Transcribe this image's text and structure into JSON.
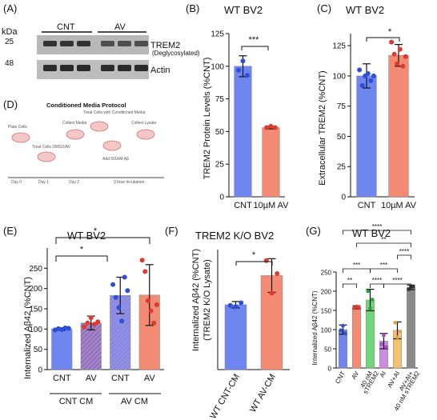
{
  "panels": {
    "A": {
      "letter": "(A)",
      "kda_label": "kDa",
      "mw_top": "25",
      "mw_bottom": "48",
      "group_left": "CNT",
      "group_right": "AV",
      "band_top_label": "TREM2",
      "band_top_sub": "(Deglycosylated)",
      "band_bottom_label": "Actin"
    },
    "B": {
      "letter": "(B)",
      "title": "WT BV2",
      "ylabel": "TREM2 Protein Levels (%CNT)",
      "sig": "***"
    },
    "C": {
      "letter": "(C)",
      "title": "WT BV2",
      "ylabel": "Extracellular TREM2 (%CNT)",
      "sig": "*"
    },
    "D": {
      "letter": "(D)",
      "title": "Conditioned Media Protocol",
      "steps": [
        "Plate Cells",
        "Treat Cells DMSO/AV",
        "Collect Media",
        "Treat Cells with Conditioned Media",
        "Add 500nM Aβ",
        "Collect Lysate"
      ],
      "days": [
        "Day 0",
        "Day 1",
        "Day 2",
        "3 hour incubation"
      ]
    },
    "E": {
      "letter": "(E)",
      "title": "WT BV2",
      "ylabel": "Internalized Aβ42 (%CNT)",
      "group_left": "CNT CM",
      "group_right": "AV CM",
      "sig": [
        "*",
        "*"
      ]
    },
    "F": {
      "letter": "(F)",
      "title": "TREM2 K/O BV2",
      "ylabel_line1": "Internalized Aβ42 (%CNT)",
      "ylabel_line2": "(TREM2 K/O Lysate)",
      "sig": "*"
    },
    "G": {
      "letter": "(G)",
      "title": "WT BV2",
      "ylabel": "Internalized Aβ42 (%CNT)",
      "sig": [
        "****",
        "**",
        "****",
        "***",
        "***",
        "**",
        "****",
        "****"
      ]
    }
  },
  "chart_data": [
    {
      "panel": "B",
      "type": "bar",
      "categories": [
        "CNT",
        "10µM AV"
      ],
      "values": [
        100,
        53
      ],
      "errors": [
        8,
        1
      ],
      "points": [
        [
          97,
          104,
          93
        ],
        [
          53,
          54,
          53
        ]
      ],
      "colors": [
        "#6f86f0",
        "#f38b74"
      ],
      "yticks": [
        0,
        25,
        50,
        75,
        100,
        125
      ],
      "ylim": [
        0,
        125
      ]
    },
    {
      "panel": "C",
      "type": "bar",
      "categories": [
        "CNT",
        "10µM AV"
      ],
      "values": [
        100,
        117
      ],
      "errors": [
        10,
        9
      ],
      "points": [
        [
          105,
          92,
          100,
          102,
          96,
          100
        ],
        [
          128,
          118,
          110,
          122,
          108,
          116
        ]
      ],
      "colors": [
        "#6f86f0",
        "#f38b74"
      ],
      "yticks": [
        0,
        25,
        50,
        75,
        100,
        125
      ],
      "ylim": [
        0,
        135
      ]
    },
    {
      "panel": "E",
      "type": "bar",
      "categories": [
        "CNT",
        "AV",
        "CNT",
        "AV"
      ],
      "values": [
        100,
        115,
        183,
        184
      ],
      "errors": [
        3,
        17,
        45,
        75
      ],
      "points": [
        [
          98,
          101,
          99,
          103,
          102
        ],
        [
          105,
          115,
          128,
          112,
          118
        ],
        [
          210,
          178,
          153,
          120,
          228,
          195
        ],
        [
          270,
          242,
          170,
          145,
          115,
          160
        ]
      ],
      "colors": [
        "#6f86f0",
        "#9d7dc6",
        "#6f86f0",
        "#f38b74"
      ],
      "yticks": [
        0,
        50,
        100,
        150,
        200,
        250
      ],
      "ylim": [
        0,
        300
      ]
    },
    {
      "panel": "F",
      "type": "bar",
      "categories": [
        "WT CNT-CM",
        "WT AV-CM"
      ],
      "values": [
        100,
        145
      ],
      "errors": [
        5,
        26
      ],
      "points": [
        [
          99,
          97,
          103
        ],
        [
          168,
          118,
          148
        ]
      ],
      "colors": [
        "#6f86f0",
        "#f38b74"
      ],
      "yticks": [],
      "ylim": [
        0,
        185
      ]
    },
    {
      "panel": "G",
      "type": "bar",
      "categories": [
        "CNT",
        "AV",
        "40 nM sTREM2",
        "AI",
        "AV+AI",
        "AV+AI+ 40 nM sTREM2"
      ],
      "values": [
        100,
        158,
        177,
        70,
        98,
        210
      ],
      "errors": [
        12,
        4,
        28,
        20,
        22,
        6
      ],
      "points": [
        [
          98,
          110,
          90
        ],
        [
          156,
          160,
          158
        ],
        [
          200,
          155,
          178
        ],
        [
          62,
          85,
          55
        ],
        [
          118,
          80,
          95
        ],
        [
          205,
          212,
          212
        ]
      ],
      "colors": [
        "#6f86f0",
        "#f38b74",
        "#6fd67a",
        "#c98ee0",
        "#f5c272",
        "#8a8a8a"
      ],
      "yticks": [
        0,
        50,
        100,
        150,
        200,
        250
      ],
      "ylim": [
        0,
        250
      ]
    }
  ]
}
